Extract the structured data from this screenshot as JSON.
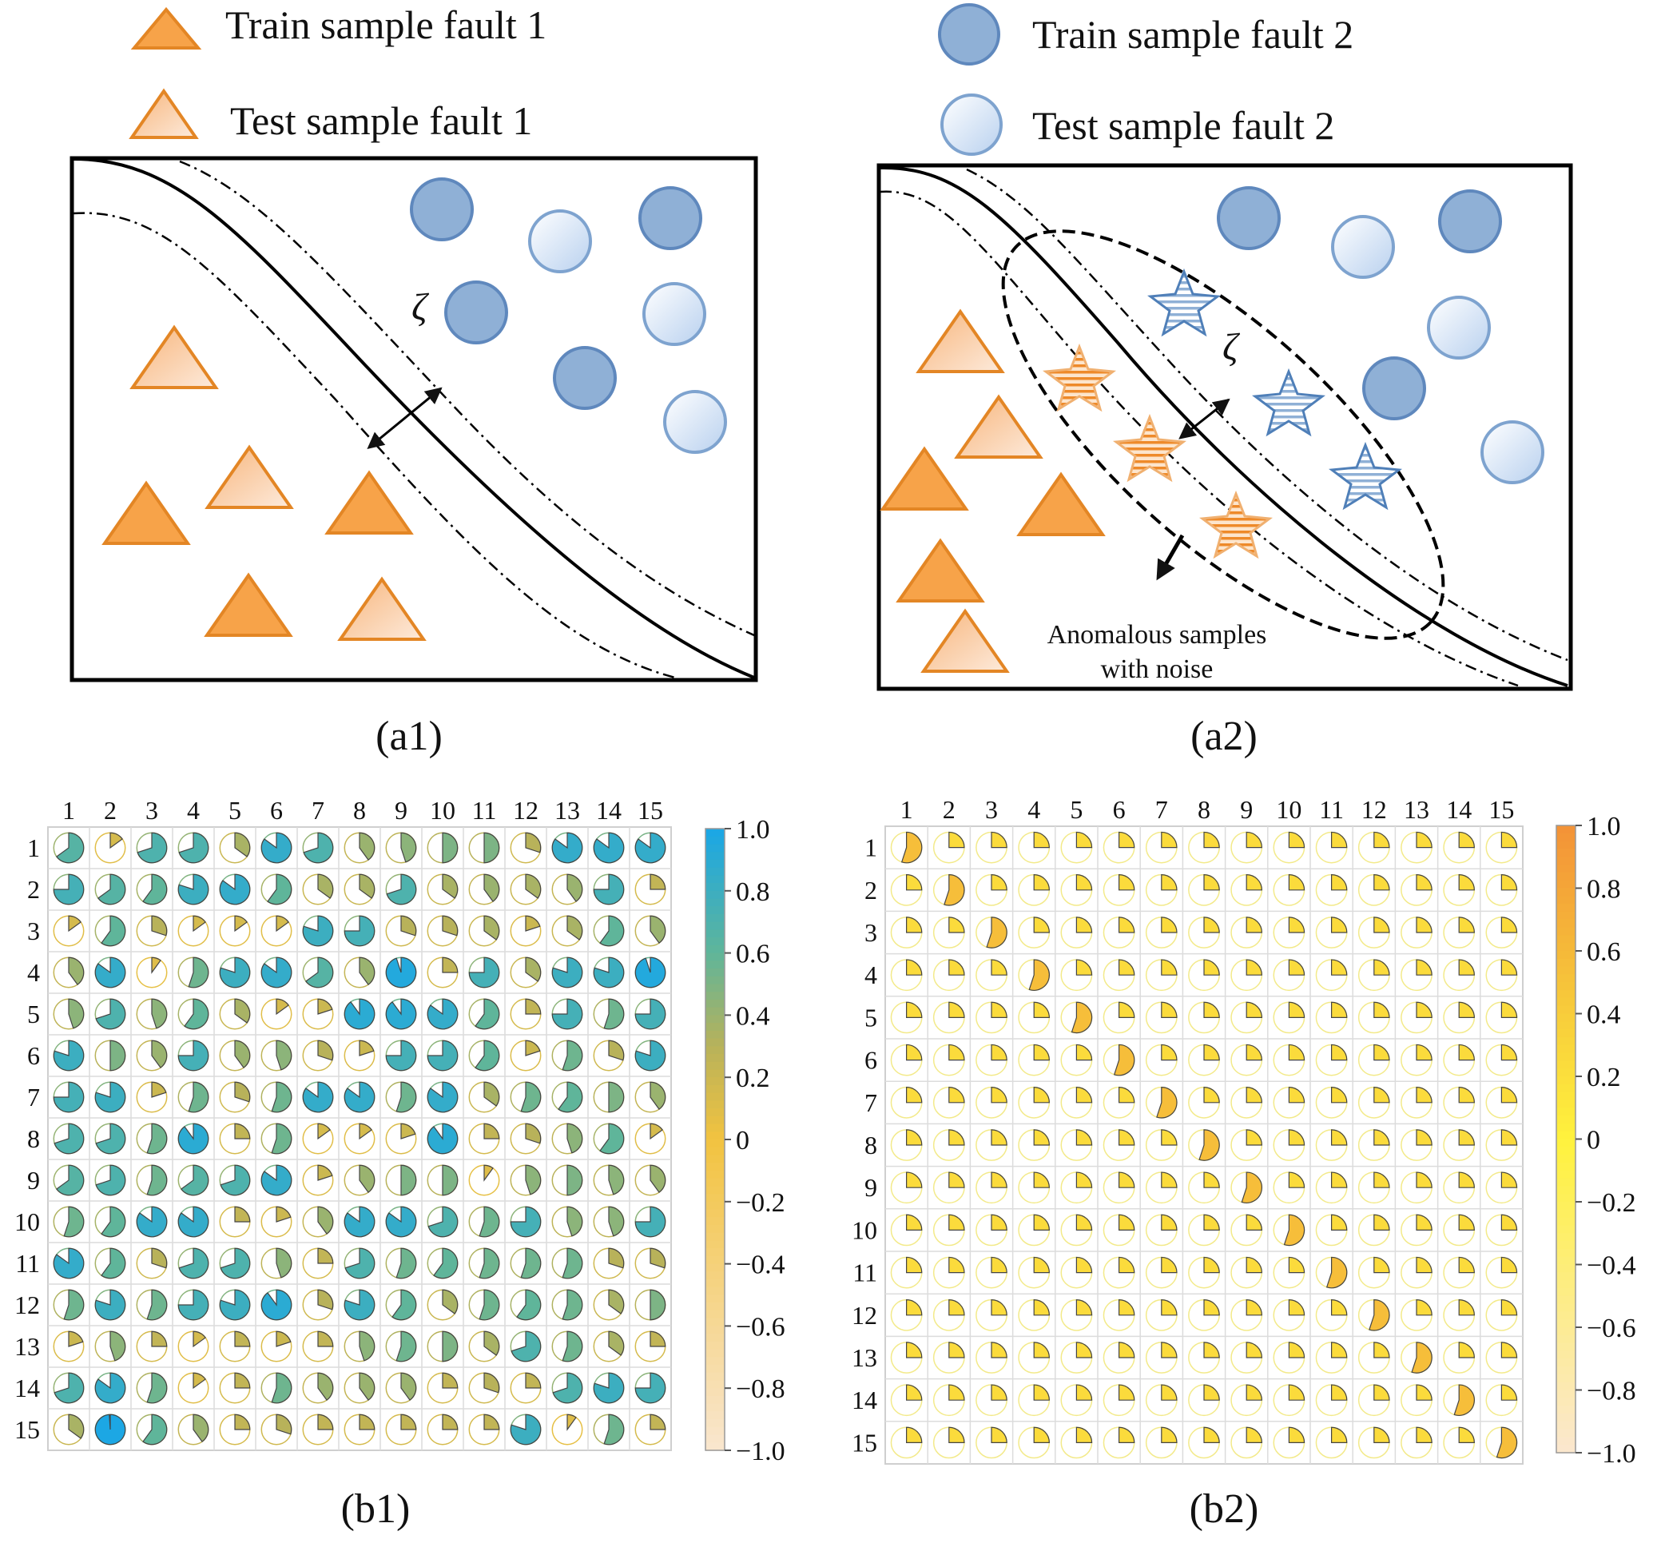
{
  "legend": {
    "train_fault_1": "Train sample fault 1",
    "test_fault_1": "Test sample fault 1",
    "train_fault_2": "Train sample fault 2",
    "test_fault_2": "Test sample fault 2"
  },
  "panel_a1": {
    "caption": "(a1)",
    "margin_symbol": "ζ"
  },
  "panel_a2": {
    "caption": "(a2)",
    "margin_symbol": "ζ",
    "annotation_line1": "Anomalous samples",
    "annotation_line2": "with noise"
  },
  "panel_b1": {
    "caption": "(b1)",
    "row_labels": [
      "1",
      "2",
      "3",
      "4",
      "5",
      "6",
      "7",
      "8",
      "9",
      "10",
      "11",
      "12",
      "13",
      "14",
      "15"
    ],
    "col_labels": [
      "1",
      "2",
      "3",
      "4",
      "5",
      "6",
      "7",
      "8",
      "9",
      "10",
      "11",
      "12",
      "13",
      "14",
      "15"
    ],
    "colorbar_ticks": [
      "1.0",
      "0.8",
      "0.6",
      "0.4",
      "0.2",
      "0",
      "−0.2",
      "−0.4",
      "−0.6",
      "−0.8",
      "−1.0"
    ],
    "colors": {
      "high": "#1aa7e6",
      "mid": "#5fb59a",
      "low": "#b8b25a",
      "zero": "#f2c340",
      "neg": "#f9e6cf"
    }
  },
  "panel_b2": {
    "caption": "(b2)",
    "row_labels": [
      "1",
      "2",
      "3",
      "4",
      "5",
      "6",
      "7",
      "8",
      "9",
      "10",
      "11",
      "12",
      "13",
      "14",
      "15"
    ],
    "col_labels": [
      "1",
      "2",
      "3",
      "4",
      "5",
      "6",
      "7",
      "8",
      "9",
      "10",
      "11",
      "12",
      "13",
      "14",
      "15"
    ],
    "colorbar_ticks": [
      "1.0",
      "0.8",
      "0.6",
      "0.4",
      "0.2",
      "0",
      "−0.2",
      "−0.4",
      "−0.6",
      "−0.8",
      "−1.0"
    ],
    "colors": {
      "high": "#f39237",
      "mid": "#f6c33a",
      "zero": "#fff23d",
      "neg": "#fbe7cf"
    },
    "diagonal_value": 0.55,
    "offdiagonal_value": 0.25
  },
  "chart_data": [
    {
      "type": "heatmap",
      "title": "",
      "rows": [
        "1",
        "2",
        "3",
        "4",
        "5",
        "6",
        "7",
        "8",
        "9",
        "10",
        "11",
        "12",
        "13",
        "14",
        "15"
      ],
      "cols": [
        "1",
        "2",
        "3",
        "4",
        "5",
        "6",
        "7",
        "8",
        "9",
        "10",
        "11",
        "12",
        "13",
        "14",
        "15"
      ],
      "range": [
        -1.0,
        1.0
      ],
      "marker": "pie",
      "values": [
        [
          0.65,
          0.15,
          0.7,
          0.7,
          0.35,
          0.85,
          0.7,
          0.4,
          0.45,
          0.5,
          0.5,
          0.3,
          0.85,
          0.85,
          0.85
        ],
        [
          0.75,
          0.65,
          0.6,
          0.8,
          0.85,
          0.6,
          0.35,
          0.35,
          0.7,
          0.35,
          0.4,
          0.35,
          0.4,
          0.75,
          0.25
        ],
        [
          0.15,
          0.6,
          0.3,
          0.15,
          0.15,
          0.15,
          0.8,
          0.75,
          0.3,
          0.3,
          0.35,
          0.2,
          0.35,
          0.6,
          0.4
        ],
        [
          0.4,
          0.85,
          0.1,
          0.55,
          0.8,
          0.85,
          0.65,
          0.4,
          0.95,
          0.25,
          0.75,
          0.35,
          0.8,
          0.8,
          0.95
        ],
        [
          0.45,
          0.7,
          0.45,
          0.6,
          0.35,
          0.15,
          0.2,
          0.9,
          0.9,
          0.85,
          0.6,
          0.25,
          0.75,
          0.55,
          0.75
        ],
        [
          0.8,
          0.5,
          0.4,
          0.75,
          0.4,
          0.45,
          0.3,
          0.2,
          0.75,
          0.75,
          0.6,
          0.2,
          0.55,
          0.3,
          0.8
        ],
        [
          0.75,
          0.8,
          0.2,
          0.55,
          0.3,
          0.55,
          0.85,
          0.85,
          0.55,
          0.85,
          0.35,
          0.55,
          0.6,
          0.5,
          0.4
        ],
        [
          0.7,
          0.7,
          0.55,
          0.9,
          0.25,
          0.55,
          0.15,
          0.15,
          0.2,
          0.9,
          0.25,
          0.3,
          0.45,
          0.6,
          0.15
        ],
        [
          0.65,
          0.7,
          0.55,
          0.65,
          0.7,
          0.85,
          0.2,
          0.4,
          0.5,
          0.5,
          0.1,
          0.45,
          0.5,
          0.45,
          0.4
        ],
        [
          0.55,
          0.6,
          0.85,
          0.85,
          0.25,
          0.2,
          0.4,
          0.85,
          0.85,
          0.7,
          0.55,
          0.75,
          0.45,
          0.45,
          0.75
        ],
        [
          0.85,
          0.6,
          0.3,
          0.7,
          0.7,
          0.45,
          0.25,
          0.7,
          0.55,
          0.6,
          0.55,
          0.55,
          0.55,
          0.3,
          0.3
        ],
        [
          0.55,
          0.8,
          0.55,
          0.75,
          0.8,
          0.9,
          0.3,
          0.8,
          0.6,
          0.35,
          0.55,
          0.6,
          0.55,
          0.35,
          0.5
        ],
        [
          0.2,
          0.45,
          0.25,
          0.15,
          0.25,
          0.2,
          0.25,
          0.45,
          0.55,
          0.5,
          0.35,
          0.7,
          0.55,
          0.35,
          0.25
        ],
        [
          0.7,
          0.85,
          0.55,
          0.15,
          0.25,
          0.55,
          0.4,
          0.4,
          0.4,
          0.25,
          0.3,
          0.25,
          0.7,
          0.8,
          0.75
        ],
        [
          0.35,
          0.99,
          0.6,
          0.4,
          0.25,
          0.3,
          0.25,
          0.25,
          0.25,
          0.25,
          0.25,
          0.8,
          0.1,
          0.55,
          0.25
        ]
      ]
    },
    {
      "type": "heatmap",
      "title": "",
      "rows": [
        "1",
        "2",
        "3",
        "4",
        "5",
        "6",
        "7",
        "8",
        "9",
        "10",
        "11",
        "12",
        "13",
        "14",
        "15"
      ],
      "cols": [
        "1",
        "2",
        "3",
        "4",
        "5",
        "6",
        "7",
        "8",
        "9",
        "10",
        "11",
        "12",
        "13",
        "14",
        "15"
      ],
      "range": [
        -1.0,
        1.0
      ],
      "marker": "pie",
      "diagonal": 0.55,
      "off_diagonal": 0.25
    }
  ]
}
